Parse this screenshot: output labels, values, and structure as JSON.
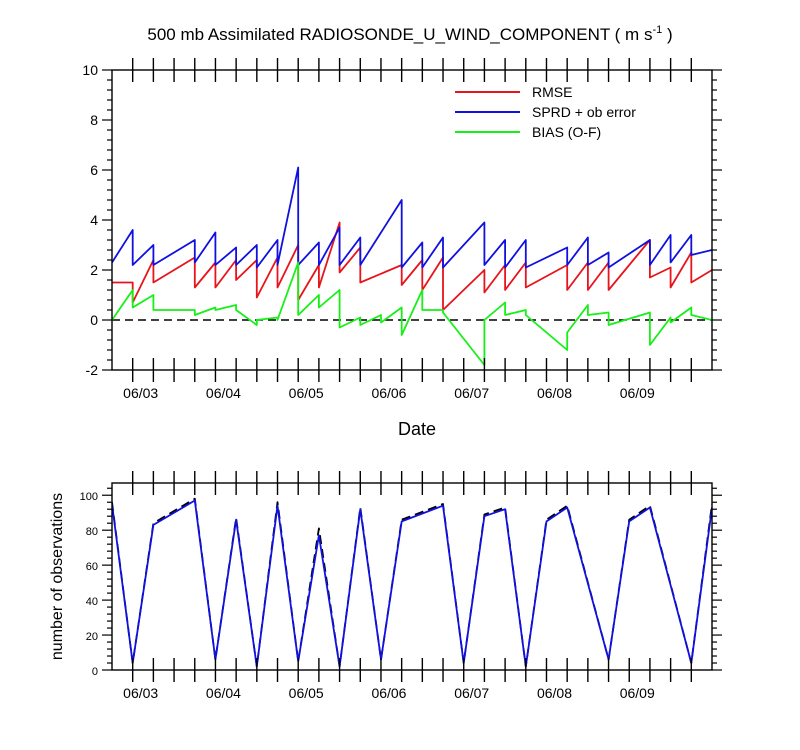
{
  "title": "500 mb Assimilated RADIOSONDE_U_WIND_COMPONENT",
  "units_prefix": "( m s",
  "units_exp": "-1",
  "units_suffix": " )",
  "chart_data": [
    {
      "type": "line",
      "xlabel": "Date",
      "ylabel": "",
      "xlim": [
        0,
        7.25
      ],
      "ylim": [
        -2,
        10
      ],
      "x_ticks": [
        0.25,
        1.25,
        2.25,
        3.25,
        4.25,
        5.25,
        6.25
      ],
      "x_tick_labels": [
        "06/03",
        "06/04",
        "06/05",
        "06/06",
        "06/07",
        "06/08",
        "06/09"
      ],
      "y_ticks": [
        -2,
        0,
        2,
        4,
        6,
        8,
        10
      ],
      "y_tick_labels": [
        "-2",
        "0",
        "2",
        "4",
        "6",
        "8",
        "10"
      ],
      "zero_line": {
        "style": "dashed",
        "color": "#000000"
      },
      "legend": {
        "placement": "top-right"
      },
      "series": [
        {
          "name": "RMSE",
          "color": "#e8141b",
          "x": [
            0,
            0.25,
            0.25,
            0.5,
            0.5,
            1,
            1,
            1.25,
            1.25,
            1.5,
            1.5,
            1.75,
            1.75,
            2,
            2,
            2.25,
            2.25,
            2.5,
            2.5,
            2.75,
            2.75,
            3,
            3,
            3.5,
            3.5,
            3.75,
            3.75,
            4,
            4,
            4.5,
            4.5,
            4.75,
            4.75,
            5,
            5,
            5.5,
            5.5,
            5.75,
            5.75,
            6,
            6,
            6.5,
            6.5,
            6.75,
            6.75,
            7,
            7,
            7.25
          ],
          "y": [
            1.5,
            1.5,
            0.7,
            2.4,
            1.5,
            2.5,
            1.3,
            2.3,
            1.3,
            2.4,
            1.6,
            2.4,
            0.9,
            2.5,
            1.3,
            3.0,
            0.8,
            2.2,
            1.3,
            3.9,
            1.9,
            2.9,
            1.5,
            2.2,
            1.4,
            2.4,
            1.2,
            2.5,
            0.4,
            2.0,
            1.1,
            2.2,
            1.2,
            2.3,
            1.3,
            2.2,
            1.2,
            2.3,
            1.2,
            2.3,
            1.2,
            3.2,
            1.7,
            2.1,
            1.3,
            2.7,
            1.5,
            2.0
          ]
        },
        {
          "name": "SPRD + ob error",
          "color": "#1010e0",
          "x": [
            0,
            0.25,
            0.25,
            0.5,
            0.5,
            1,
            1,
            1.25,
            1.25,
            1.5,
            1.5,
            1.75,
            1.75,
            2,
            2,
            2.25,
            2.25,
            2.5,
            2.5,
            2.75,
            2.75,
            3,
            3,
            3.5,
            3.5,
            3.75,
            3.75,
            4,
            4,
            4.5,
            4.5,
            4.75,
            4.75,
            5,
            5,
            5.5,
            5.5,
            5.75,
            5.75,
            6,
            6,
            6.5,
            6.5,
            6.75,
            6.75,
            7,
            7,
            7.25
          ],
          "y": [
            2.3,
            3.6,
            2.2,
            3.0,
            2.2,
            3.2,
            2.3,
            3.5,
            2.2,
            2.9,
            2.2,
            3.0,
            2.1,
            3.2,
            2.2,
            6.1,
            2.2,
            3.1,
            2.2,
            3.7,
            2.2,
            3.3,
            2.2,
            4.8,
            2.1,
            3.1,
            2.1,
            3.3,
            2.1,
            3.9,
            2.2,
            3.2,
            2.1,
            3.2,
            2.1,
            2.9,
            2.2,
            3.3,
            2.2,
            2.7,
            2.1,
            3.2,
            2.2,
            3.4,
            2.3,
            3.4,
            2.6,
            2.8
          ]
        },
        {
          "name": "BIAS (O-F)",
          "color": "#16f016",
          "x": [
            0,
            0.25,
            0.25,
            0.5,
            0.5,
            1,
            1,
            1.25,
            1.25,
            1.5,
            1.5,
            1.75,
            1.75,
            2,
            2,
            2.25,
            2.25,
            2.5,
            2.5,
            2.75,
            2.75,
            3,
            3,
            3.25,
            3.25,
            3.5,
            3.5,
            3.75,
            3.75,
            4,
            4,
            4.5,
            4.5,
            4.75,
            4.75,
            5,
            5,
            5.5,
            5.5,
            5.75,
            5.75,
            6,
            6,
            6.5,
            6.5,
            6.75,
            6.75,
            7,
            7,
            7.25
          ],
          "y": [
            0.0,
            1.2,
            0.5,
            1.0,
            0.4,
            0.4,
            0.2,
            0.5,
            0.4,
            0.6,
            0.4,
            -0.2,
            0.0,
            0.1,
            0.0,
            2.3,
            0.2,
            1.0,
            0.5,
            1.2,
            -0.3,
            0.1,
            -0.2,
            0.2,
            -0.1,
            0.5,
            -0.6,
            1.2,
            0.4,
            0.4,
            0.3,
            -1.8,
            0.0,
            0.7,
            0.2,
            0.4,
            0.2,
            -1.2,
            -0.5,
            0.6,
            0.2,
            0.3,
            -0.2,
            0.3,
            -1.0,
            0.1,
            -0.1,
            0.5,
            0.2,
            0.0
          ]
        }
      ]
    },
    {
      "type": "line",
      "xlabel": "",
      "ylabel": "number of observations",
      "xlim": [
        0,
        7.25
      ],
      "ylim": [
        0,
        107
      ],
      "x_ticks": [
        0.25,
        1.25,
        2.25,
        3.25,
        4.25,
        5.25,
        6.25
      ],
      "x_tick_labels": [
        "06/03",
        "06/04",
        "06/05",
        "06/06",
        "06/07",
        "06/08",
        "06/09"
      ],
      "y_ticks": [
        0,
        20,
        40,
        60,
        80,
        100
      ],
      "y_tick_labels": [
        "0",
        "20",
        "40",
        "60",
        "80",
        "100"
      ],
      "series": [
        {
          "color": "#000000",
          "style": "dashed",
          "x": [
            0,
            0.25,
            0.5,
            1,
            1.25,
            1.5,
            1.75,
            2,
            2.25,
            2.5,
            2.75,
            3,
            3.25,
            3.5,
            4,
            4.25,
            4.5,
            4.75,
            5,
            5.25,
            5.5,
            6,
            6.25,
            6.5,
            7,
            7.25
          ],
          "y": [
            96,
            4,
            84,
            98,
            6,
            87,
            2,
            96,
            5,
            81,
            2,
            93,
            6,
            86,
            95,
            4,
            89,
            93,
            2,
            86,
            94,
            6,
            86,
            94,
            4,
            95
          ]
        },
        {
          "color": "#1010e0",
          "style": "solid",
          "x": [
            0,
            0.25,
            0.5,
            1,
            1.25,
            1.5,
            1.75,
            2,
            2.25,
            2.5,
            2.75,
            3,
            3.25,
            3.5,
            4,
            4.25,
            4.5,
            4.75,
            5,
            5.25,
            5.5,
            6,
            6.25,
            6.5,
            7,
            7.25
          ],
          "y": [
            95,
            4,
            83,
            97,
            6,
            86,
            2,
            94,
            5,
            77,
            2,
            92,
            6,
            85,
            94,
            4,
            88,
            92,
            2,
            85,
            93,
            6,
            85,
            93,
            4,
            93
          ]
        }
      ]
    }
  ]
}
